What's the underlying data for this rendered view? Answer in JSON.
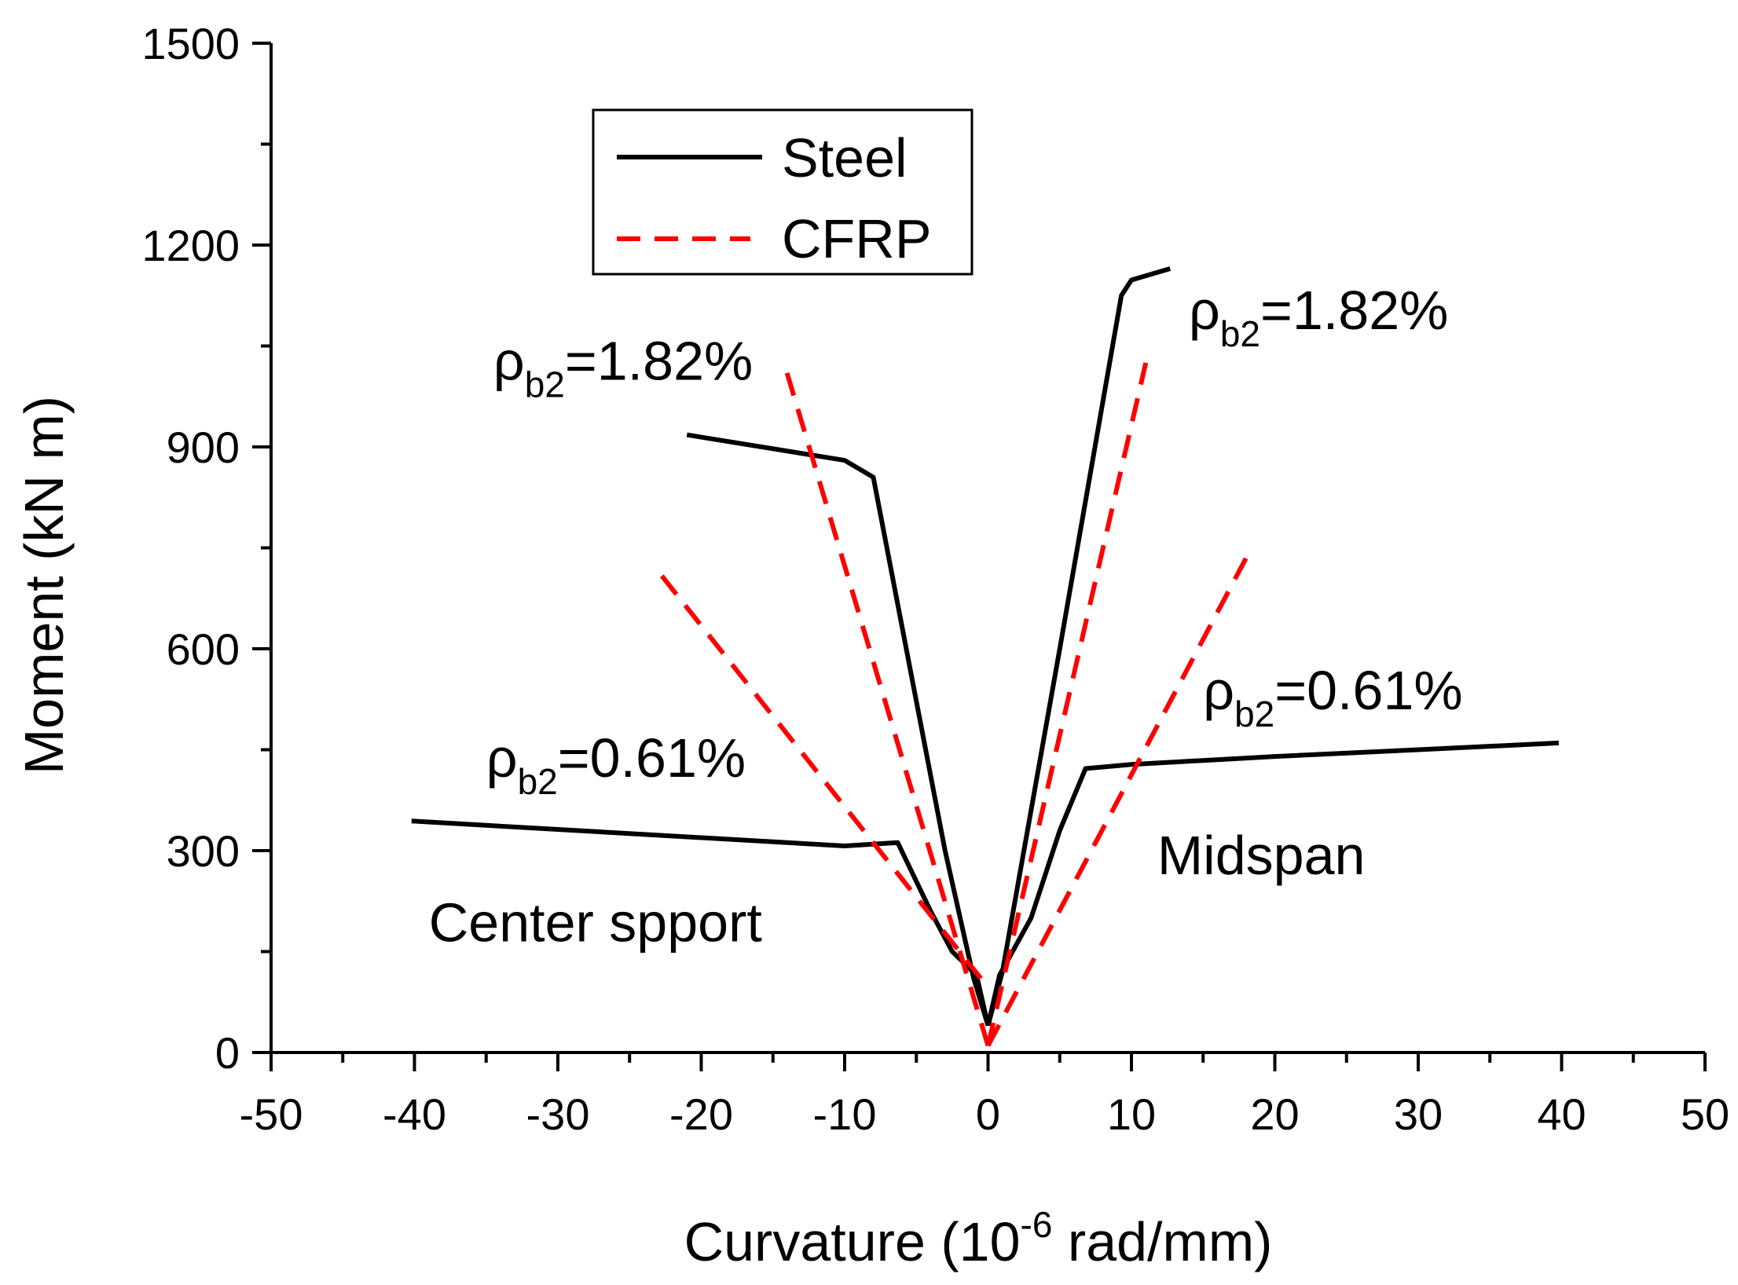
{
  "chart_data": {
    "type": "line",
    "title": "",
    "xlabel": "Curvature (10-6 rad/mm)",
    "xlabel_parts": {
      "before": "Curvature (10",
      "sup": "-6",
      "after": " rad/mm)"
    },
    "ylabel": "Moment (kN m)",
    "xlim": [
      -50,
      50
    ],
    "ylim": [
      0,
      1500
    ],
    "x_ticks": [
      -50,
      -40,
      -30,
      -20,
      -10,
      0,
      10,
      20,
      30,
      40,
      50
    ],
    "y_ticks": [
      0,
      300,
      600,
      900,
      1200,
      1500
    ],
    "grid": false,
    "legend": {
      "position": "top-left",
      "entries": [
        {
          "label": "Steel",
          "style": "solid",
          "color": "#000000"
        },
        {
          "label": "CFRP",
          "style": "dashed",
          "color": "#ff0000"
        }
      ]
    },
    "series": [
      {
        "name": "Steel center support ρb2=1.82%",
        "material": "Steel",
        "color": "#000000",
        "dash": "solid",
        "points": [
          [
            0,
            40
          ],
          [
            -1,
            110
          ],
          [
            -3,
            300
          ],
          [
            -8,
            855
          ],
          [
            -10,
            880
          ],
          [
            -21,
            918
          ]
        ]
      },
      {
        "name": "Steel midspan ρb2=1.82%",
        "material": "Steel",
        "color": "#000000",
        "dash": "solid",
        "points": [
          [
            0,
            40
          ],
          [
            1,
            120
          ],
          [
            5,
            600
          ],
          [
            9.3,
            1125
          ],
          [
            10,
            1148
          ],
          [
            12.7,
            1165
          ]
        ]
      },
      {
        "name": "Steel center support ρb2=0.61%",
        "material": "Steel",
        "color": "#000000",
        "dash": "solid",
        "points": [
          [
            0,
            40
          ],
          [
            -0.8,
            115
          ],
          [
            -2.5,
            150
          ],
          [
            -4,
            210
          ],
          [
            -6.3,
            312
          ],
          [
            -10,
            307
          ],
          [
            -40.2,
            344
          ]
        ]
      },
      {
        "name": "Steel midspan ρb2=0.61%",
        "material": "Steel",
        "color": "#000000",
        "dash": "solid",
        "points": [
          [
            0,
            40
          ],
          [
            0.8,
            115
          ],
          [
            3,
            200
          ],
          [
            5,
            330
          ],
          [
            6.8,
            422
          ],
          [
            10,
            428
          ],
          [
            20,
            440
          ],
          [
            30,
            450
          ],
          [
            39.8,
            460
          ]
        ]
      },
      {
        "name": "CFRP center support ρb2=1.82%",
        "material": "CFRP",
        "color": "#ff0000",
        "dash": "dashed",
        "points": [
          [
            0,
            10
          ],
          [
            -14.3,
            1030
          ]
        ]
      },
      {
        "name": "CFRP midspan ρb2=1.82%",
        "material": "CFRP",
        "color": "#ff0000",
        "dash": "dashed",
        "points": [
          [
            0,
            10
          ],
          [
            11,
            1025
          ]
        ]
      },
      {
        "name": "CFRP center support ρb2=0.61%",
        "material": "CFRP",
        "color": "#ff0000",
        "dash": "dashed",
        "points": [
          [
            -0.5,
            110
          ],
          [
            -23,
            715
          ]
        ]
      },
      {
        "name": "CFRP midspan ρb2=0.61%",
        "material": "CFRP",
        "color": "#ff0000",
        "dash": "dashed",
        "points": [
          [
            0,
            10
          ],
          [
            18,
            735
          ]
        ]
      }
    ],
    "annotations": [
      {
        "id": "rho-support-high",
        "symbol": "ρ",
        "sub": "b2",
        "value": "=1.82%",
        "x": -34.5,
        "y": 1000
      },
      {
        "id": "rho-midspan-high",
        "symbol": "ρ",
        "sub": "b2",
        "value": "=1.82%",
        "x": 14,
        "y": 1075
      },
      {
        "id": "rho-support-low",
        "symbol": "ρ",
        "sub": "b2",
        "value": "=0.61%",
        "x": -35,
        "y": 410
      },
      {
        "id": "rho-midspan-low",
        "symbol": "ρ",
        "sub": "b2",
        "value": "=0.61%",
        "x": 15,
        "y": 510
      },
      {
        "id": "label-center-support",
        "text": "Center spport",
        "x": -39,
        "y": 165
      },
      {
        "id": "label-midspan",
        "text": "Midspan",
        "x": 11.8,
        "y": 265
      }
    ]
  }
}
